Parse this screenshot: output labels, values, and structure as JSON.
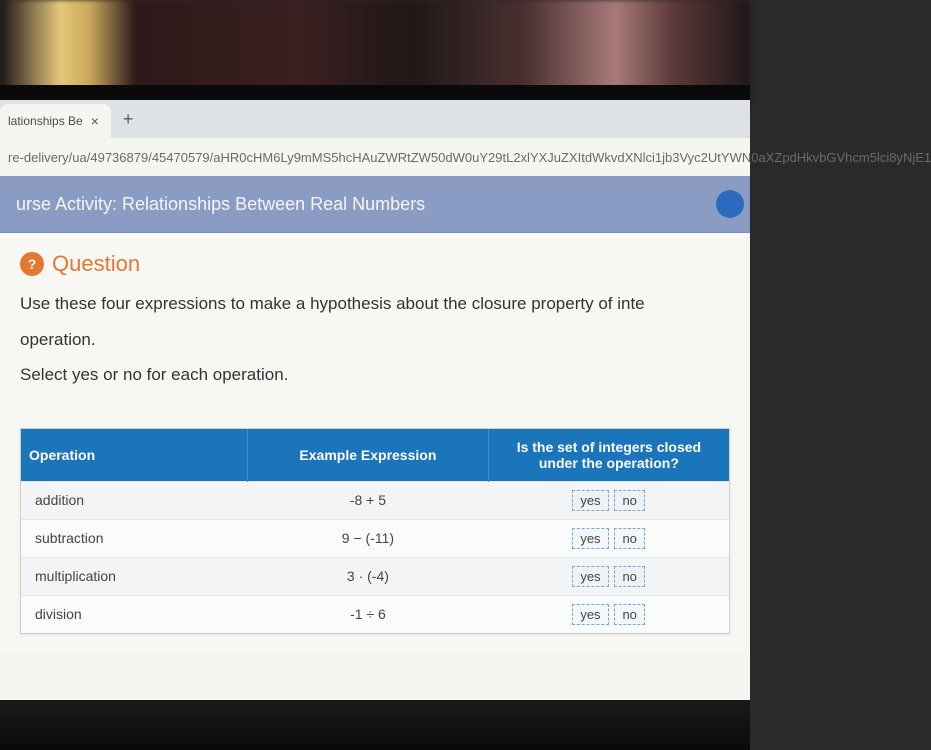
{
  "browser": {
    "tab_title": "lationships Be",
    "tab_close": "×",
    "new_tab": "+",
    "url_fragment": "re-delivery/ua/49736879/45470579/aHR0cHM6Ly9mMS5hcHAuZWRtZW50dW0uY29tL2xlYXJuZXItdWkvdXNlci1jb3Vyc2UtYWN0aXZpdHkvbGVhcm5lci8yNjE1"
  },
  "banner": {
    "title": "urse Activity: Relationships Between Real Numbers"
  },
  "question": {
    "badge": "?",
    "label": "Question",
    "line1": "Use these four expressions to make a hypothesis about the closure property of inte",
    "line2": "operation.",
    "line3": "Select yes or no for each operation."
  },
  "table": {
    "headers": {
      "op": "Operation",
      "expr": "Example Expression",
      "ans": "Is the set of integers closed under the operation?"
    },
    "rows": [
      {
        "op": "addition",
        "expr": "-8 + 5",
        "yes": "yes",
        "no": "no"
      },
      {
        "op": "subtraction",
        "expr": "9 − (-11)",
        "yes": "yes",
        "no": "no"
      },
      {
        "op": "multiplication",
        "expr": "3 · (-4)",
        "yes": "yes",
        "no": "no"
      },
      {
        "op": "division",
        "expr": "-1 ÷ 6",
        "yes": "yes",
        "no": "no"
      }
    ]
  }
}
